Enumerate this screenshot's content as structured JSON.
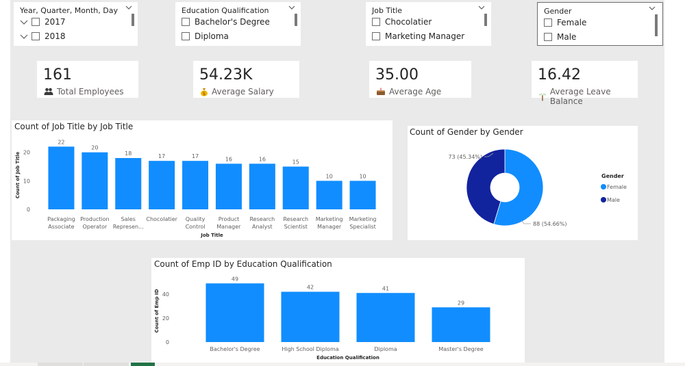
{
  "colors": {
    "bar": "#118dff",
    "female": "#118dff",
    "male": "#12239e",
    "canvas": "#eaeaea",
    "tab_active": "#217346"
  },
  "slicers": [
    {
      "title": "Year, Quarter, Month, Day",
      "items": [
        "2017",
        "2018"
      ],
      "expandable": true
    },
    {
      "title": "Education Qualification",
      "items": [
        "Bachelor's Degree",
        "Diploma"
      ]
    },
    {
      "title": "Job Title",
      "items": [
        "Chocolatier",
        "Marketing Manager"
      ]
    },
    {
      "title": "Gender",
      "items": [
        "Female",
        "Male"
      ]
    }
  ],
  "kpis": [
    {
      "value": "161",
      "label": "Total Employees",
      "icon": "people-icon"
    },
    {
      "value": "54.23K",
      "label": "Average Salary",
      "icon": "money-bag-icon"
    },
    {
      "value": "35.00",
      "label": "Average Age",
      "icon": "cake-icon"
    },
    {
      "value": "16.42",
      "label": "Average Leave Balance",
      "icon": "palm-tree-icon"
    }
  ],
  "chart_data": [
    {
      "type": "bar",
      "title": "Count of Job Title by Job Title",
      "xlabel": "Job Title",
      "ylabel": "Count of Job Title",
      "ylim": [
        0,
        24
      ],
      "yticks": [
        0,
        10,
        20
      ],
      "categories": [
        [
          "Packaging",
          "Associate"
        ],
        [
          "Production",
          "Operator"
        ],
        [
          "Sales",
          "Represen..."
        ],
        [
          "Chocolatier"
        ],
        [
          "Quality",
          "Control"
        ],
        [
          "Product",
          "Manager"
        ],
        [
          "Research",
          "Analyst"
        ],
        [
          "Research",
          "Scientist"
        ],
        [
          "Marketing",
          "Manager"
        ],
        [
          "Marketing",
          "Specialist"
        ]
      ],
      "values": [
        22,
        20,
        18,
        17,
        17,
        16,
        16,
        15,
        10,
        10
      ],
      "grid": false
    },
    {
      "type": "pie",
      "title": "Count of Gender by Gender",
      "legend_title": "Gender",
      "legend_position": "right",
      "slices": [
        {
          "name": "Female",
          "value": 88,
          "label": "88 (54.66%)"
        },
        {
          "name": "Male",
          "value": 73,
          "label": "73 (45.34%)"
        }
      ]
    },
    {
      "type": "bar",
      "title": "Count of Emp ID by Education Qualification",
      "xlabel": "Education Qualification",
      "ylabel": "Count of Emp ID",
      "ylim": [
        0,
        52
      ],
      "yticks": [
        0,
        20,
        40
      ],
      "categories": [
        [
          "Bachelor's Degree"
        ],
        [
          "High School Diploma"
        ],
        [
          "Diploma"
        ],
        [
          "Master's Degree"
        ]
      ],
      "values": [
        49,
        42,
        41,
        29
      ],
      "grid": false
    }
  ]
}
